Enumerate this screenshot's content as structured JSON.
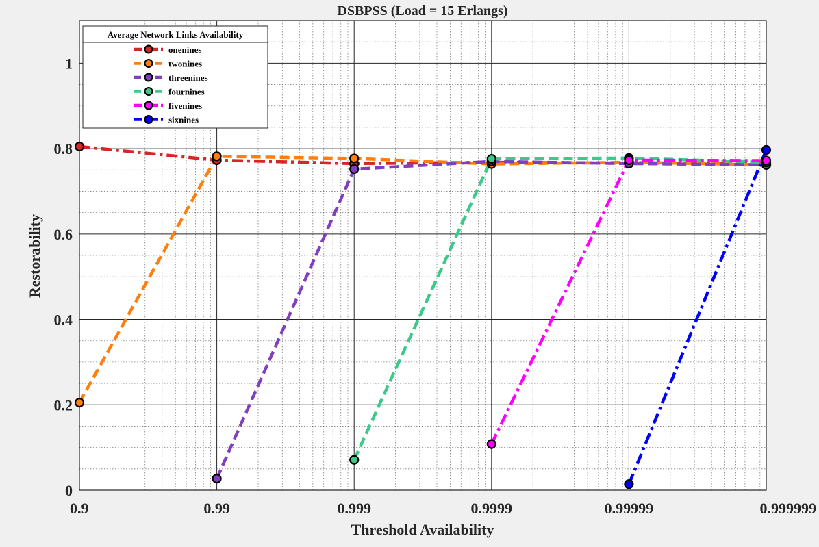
{
  "chart_data": {
    "type": "line",
    "title": "DSBPSS (Load  = 15 Erlangs)",
    "xlabel": "Threshold Availability",
    "ylabel": "Restorability",
    "x_scale": "log (decades of nines)",
    "x_ticks": [
      "0.9",
      "0.99",
      "0.999",
      "0.9999",
      "0.99999",
      "0.999999"
    ],
    "y_ticks": [
      "0",
      "0.2",
      "0.4",
      "0.6",
      "0.8",
      "1"
    ],
    "ylim": [
      0,
      1.1
    ],
    "grid": true,
    "legend": {
      "title": "Average Network Links Availability",
      "placement": "top-left"
    },
    "series": [
      {
        "name": "onenines",
        "color": "#d62728",
        "dash": "dash-dot",
        "points": [
          [
            "0.9",
            0.805
          ],
          [
            "0.99",
            0.773
          ],
          [
            "0.999",
            0.765
          ],
          [
            "0.9999",
            0.768
          ],
          [
            "0.99999",
            0.766
          ],
          [
            "0.999999",
            0.766
          ]
        ]
      },
      {
        "name": "twonines",
        "color": "#ff7f0e",
        "dash": "dash",
        "points": [
          [
            "0.9",
            0.205
          ],
          [
            "0.99",
            0.782
          ],
          [
            "0.999",
            0.777
          ],
          [
            "0.9999",
            0.764
          ],
          [
            "0.99999",
            0.768
          ],
          [
            "0.999999",
            0.762
          ]
        ]
      },
      {
        "name": "threenines",
        "color": "#7f3fbf",
        "dash": "dash",
        "points": [
          [
            "0.99",
            0.027
          ],
          [
            "0.999",
            0.752
          ],
          [
            "0.9999",
            0.77
          ],
          [
            "0.99999",
            0.765
          ],
          [
            "0.999999",
            0.762
          ]
        ]
      },
      {
        "name": "fournines",
        "color": "#3dc98a",
        "dash": "dash",
        "points": [
          [
            "0.999",
            0.071
          ],
          [
            "0.9999",
            0.776
          ],
          [
            "0.99999",
            0.778
          ],
          [
            "0.999999",
            0.768
          ]
        ]
      },
      {
        "name": "fivenines",
        "color": "#ff00ff",
        "dash": "dash-dot",
        "points": [
          [
            "0.9999",
            0.108
          ],
          [
            "0.99999",
            0.773
          ],
          [
            "0.999999",
            0.772
          ]
        ]
      },
      {
        "name": "sixnines",
        "color": "#0000ff",
        "dash": "dash-dot",
        "points": [
          [
            "0.99999",
            0.014
          ],
          [
            "0.999999",
            0.797
          ]
        ]
      }
    ]
  }
}
